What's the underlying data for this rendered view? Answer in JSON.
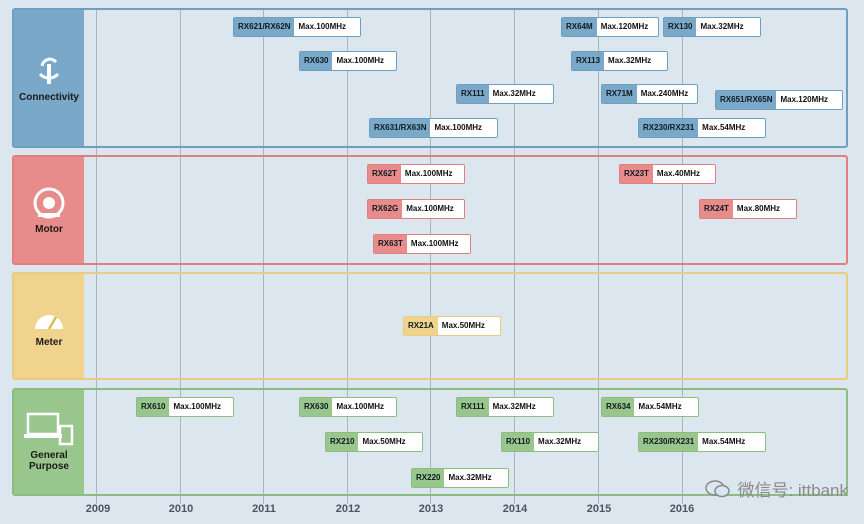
{
  "years": [
    "2009",
    "2010",
    "2011",
    "2012",
    "2013",
    "2014",
    "2015",
    "2016"
  ],
  "categories": {
    "connectivity": {
      "label": "Connectivity",
      "color": "#79a8c8"
    },
    "motor": {
      "label": "Motor",
      "color": "#e88b8b"
    },
    "meter": {
      "label": "Meter",
      "color": "#f0d38c"
    },
    "general": {
      "label": "General Purpose",
      "color": "#98c68c"
    }
  },
  "chips": {
    "conn": [
      {
        "name": "RX621/RX62N",
        "freq": "Max.100MHz"
      },
      {
        "name": "RX630",
        "freq": "Max.100MHz"
      },
      {
        "name": "RX631/RX63N",
        "freq": "Max.100MHz"
      },
      {
        "name": "RX111",
        "freq": "Max.32MHz"
      },
      {
        "name": "RX64M",
        "freq": "Max.120MHz"
      },
      {
        "name": "RX113",
        "freq": "Max.32MHz"
      },
      {
        "name": "RX71M",
        "freq": "Max.240MHz"
      },
      {
        "name": "RX130",
        "freq": "Max.32MHz"
      },
      {
        "name": "RX230/RX231",
        "freq": "Max.54MHz"
      },
      {
        "name": "RX651/RX65N",
        "freq": "Max.120MHz"
      }
    ],
    "motor": [
      {
        "name": "RX62T",
        "freq": "Max.100MHz"
      },
      {
        "name": "RX62G",
        "freq": "Max.100MHz"
      },
      {
        "name": "RX63T",
        "freq": "Max.100MHz"
      },
      {
        "name": "RX23T",
        "freq": "Max.40MHz"
      },
      {
        "name": "RX24T",
        "freq": "Max.80MHz"
      }
    ],
    "meter": [
      {
        "name": "RX21A",
        "freq": "Max.50MHz"
      }
    ],
    "gp": [
      {
        "name": "RX610",
        "freq": "Max.100MHz"
      },
      {
        "name": "RX630",
        "freq": "Max.100MHz"
      },
      {
        "name": "RX210",
        "freq": "Max.50MHz"
      },
      {
        "name": "RX220",
        "freq": "Max.32MHz"
      },
      {
        "name": "RX111",
        "freq": "Max.32MHz"
      },
      {
        "name": "RX110",
        "freq": "Max.32MHz"
      },
      {
        "name": "RX634",
        "freq": "Max.54MHz"
      },
      {
        "name": "RX230/RX231",
        "freq": "Max.54MHz"
      }
    ]
  },
  "watermark": "微信号: ittbank"
}
